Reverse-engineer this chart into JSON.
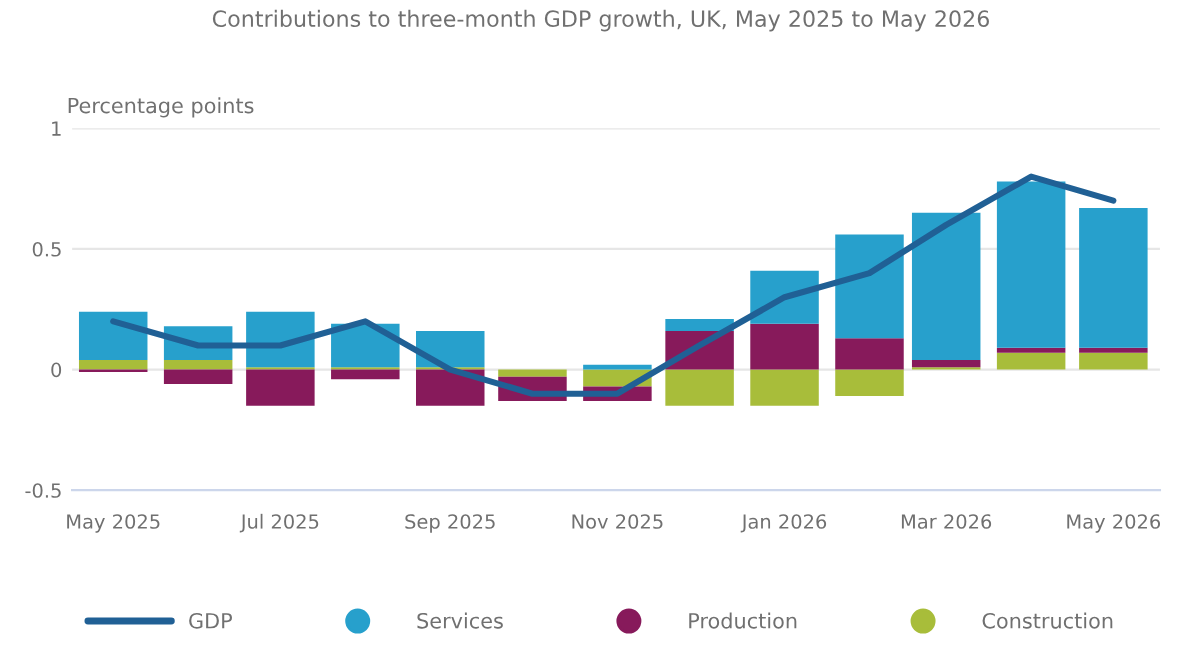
{
  "chart_data": {
    "type": "bar",
    "title": "Contributions to three-month GDP growth, UK, May 2025 to May 2026",
    "ylabel": "Percentage points",
    "stacked": true,
    "x": [
      "2025-05",
      "2025-06",
      "2025-07",
      "2025-08",
      "2025-09",
      "2025-10",
      "2025-11",
      "2025-12",
      "2026-01",
      "2026-02",
      "2026-03",
      "2026-04",
      "2026-05"
    ],
    "series": [
      {
        "name": "Construction",
        "color": "#a8bd3a",
        "values": [
          0.04,
          0.04,
          0.01,
          0.01,
          0.01,
          -0.03,
          -0.07,
          -0.15,
          -0.15,
          -0.11,
          0.01,
          0.07,
          0.07
        ]
      },
      {
        "name": "Production",
        "color": "#871a5b",
        "values": [
          -0.01,
          -0.06,
          -0.15,
          -0.04,
          -0.15,
          -0.1,
          -0.06,
          0.16,
          0.19,
          0.13,
          0.03,
          0.02,
          0.02
        ]
      },
      {
        "name": "Services",
        "color": "#27a0cc",
        "values": [
          0.2,
          0.14,
          0.23,
          0.18,
          0.15,
          null,
          0.02,
          0.05,
          0.22,
          0.43,
          0.61,
          0.69,
          0.58
        ]
      },
      {
        "name": "GDP",
        "type": "line",
        "color": "#206095",
        "values": [
          0.2,
          0.1,
          0.1,
          0.2,
          0.0,
          -0.1,
          -0.1,
          0.1,
          0.3,
          0.4,
          0.6,
          0.8,
          0.7
        ]
      }
    ],
    "xlim": [
      "2025-04-16",
      "2026-05-18"
    ],
    "xticks": [
      {
        "value": "2025-05",
        "label": "May 2025"
      },
      {
        "value": "2025-07",
        "label": "Jul 2025"
      },
      {
        "value": "2025-09",
        "label": "Sep 2025"
      },
      {
        "value": "2025-11",
        "label": "Nov 2025"
      },
      {
        "value": "2026-01",
        "label": "Jan 2026"
      },
      {
        "value": "2026-03",
        "label": "Mar 2026"
      },
      {
        "value": "2026-05",
        "label": "May 2026"
      }
    ],
    "ylim": [
      -0.5,
      1
    ],
    "yticks": [
      {
        "value": -0.5,
        "label": "-0.5"
      },
      0,
      0.5,
      1
    ],
    "grid": "y",
    "legend": "bottom"
  }
}
